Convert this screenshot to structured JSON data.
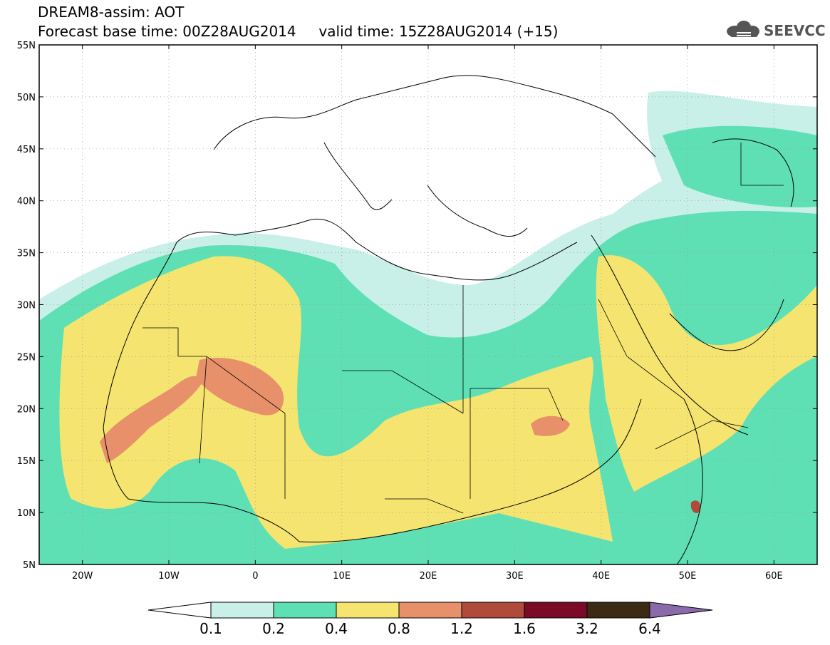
{
  "title": {
    "line1": "DREAM8-assim: AOT",
    "base_time_label": "Forecast base time: 00Z28AUG2014",
    "valid_time_label": "valid time: 15Z28AUG2014 (+15)"
  },
  "logo": {
    "text": "SEEVCCC",
    "icon": "cloud-icon"
  },
  "map": {
    "lon_range": [
      -25,
      65
    ],
    "lat_range": [
      5,
      55
    ],
    "lat_ticks": [
      {
        "value": 55,
        "label": "55N"
      },
      {
        "value": 50,
        "label": "50N"
      },
      {
        "value": 45,
        "label": "45N"
      },
      {
        "value": 40,
        "label": "40N"
      },
      {
        "value": 35,
        "label": "35N"
      },
      {
        "value": 30,
        "label": "30N"
      },
      {
        "value": 25,
        "label": "25N"
      },
      {
        "value": 20,
        "label": "20N"
      },
      {
        "value": 15,
        "label": "15N"
      },
      {
        "value": 10,
        "label": "10N"
      },
      {
        "value": 5,
        "label": "5N"
      }
    ],
    "lon_ticks": [
      {
        "value": -20,
        "label": "20W"
      },
      {
        "value": -10,
        "label": "10W"
      },
      {
        "value": 0,
        "label": "0"
      },
      {
        "value": 10,
        "label": "10E"
      },
      {
        "value": 20,
        "label": "20E"
      },
      {
        "value": 30,
        "label": "30E"
      },
      {
        "value": 40,
        "label": "40E"
      },
      {
        "value": 50,
        "label": "50E"
      },
      {
        "value": 60,
        "label": "60E"
      }
    ],
    "grid": true
  },
  "colorbar": {
    "levels": [
      "0.1",
      "0.2",
      "0.4",
      "0.8",
      "1.2",
      "1.6",
      "3.2",
      "6.4"
    ],
    "colors": [
      "#ffffff",
      "#c8f0e8",
      "#5ee0b4",
      "#f5e470",
      "#e8906a",
      "#b04a3a",
      "#7a0a28",
      "#3d2a14",
      "#8a6aaa"
    ]
  }
}
